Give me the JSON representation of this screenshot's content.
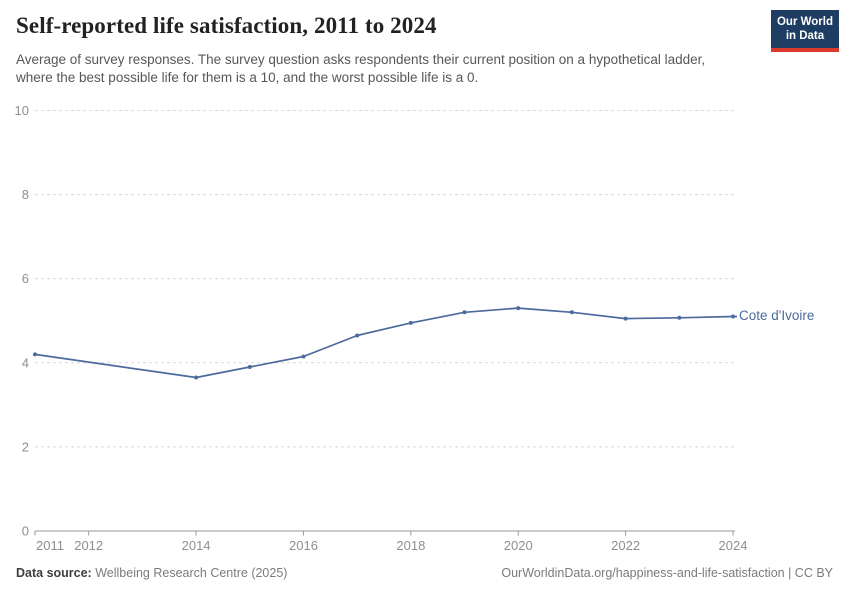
{
  "header": {
    "title": "Self-reported life satisfaction, 2011 to 2024",
    "subtitle": "Average of survey responses. The survey question asks respondents their current position on a hypothetical ladder, where the best possible life for them is a 10, and the worst possible life is a 0.",
    "logo": {
      "line1": "Our World",
      "line2": "in Data",
      "bg_color": "#1d3d63",
      "accent_color": "#d93a2b"
    }
  },
  "chart_data": {
    "type": "line",
    "title": "Self-reported life satisfaction, 2011 to 2024",
    "xlabel": "",
    "ylabel": "",
    "xlim": [
      2011,
      2024
    ],
    "ylim": [
      0,
      10
    ],
    "y_ticks": [
      0,
      2,
      4,
      6,
      8,
      10
    ],
    "x_tick_labels": [
      2011,
      2012,
      2014,
      2016,
      2018,
      2020,
      2022,
      2024
    ],
    "grid": "horizontal-dashed",
    "legend_position": "end-of-line",
    "colors": {
      "grid": "#d9d9d9",
      "axis": "#9a9a9a",
      "tick_label": "#8f8f8f"
    },
    "series": [
      {
        "name": "Cote d'Ivoire",
        "color": "#4c6a9c",
        "points": [
          {
            "year": 2011,
            "value": 4.2
          },
          {
            "year": 2014,
            "value": 3.65
          },
          {
            "year": 2015,
            "value": 3.9
          },
          {
            "year": 2016,
            "value": 4.15
          },
          {
            "year": 2017,
            "value": 4.65
          },
          {
            "year": 2018,
            "value": 4.95
          },
          {
            "year": 2019,
            "value": 5.2
          },
          {
            "year": 2020,
            "value": 5.3
          },
          {
            "year": 2021,
            "value": 5.2
          },
          {
            "year": 2022,
            "value": 5.05
          },
          {
            "year": 2023,
            "value": 5.07
          },
          {
            "year": 2024,
            "value": 5.1
          }
        ]
      }
    ]
  },
  "footer": {
    "source_label": "Data source:",
    "source_value": "Wellbeing Research Centre (2025)",
    "link_license": "OurWorldinData.org/happiness-and-life-satisfaction | CC BY"
  }
}
